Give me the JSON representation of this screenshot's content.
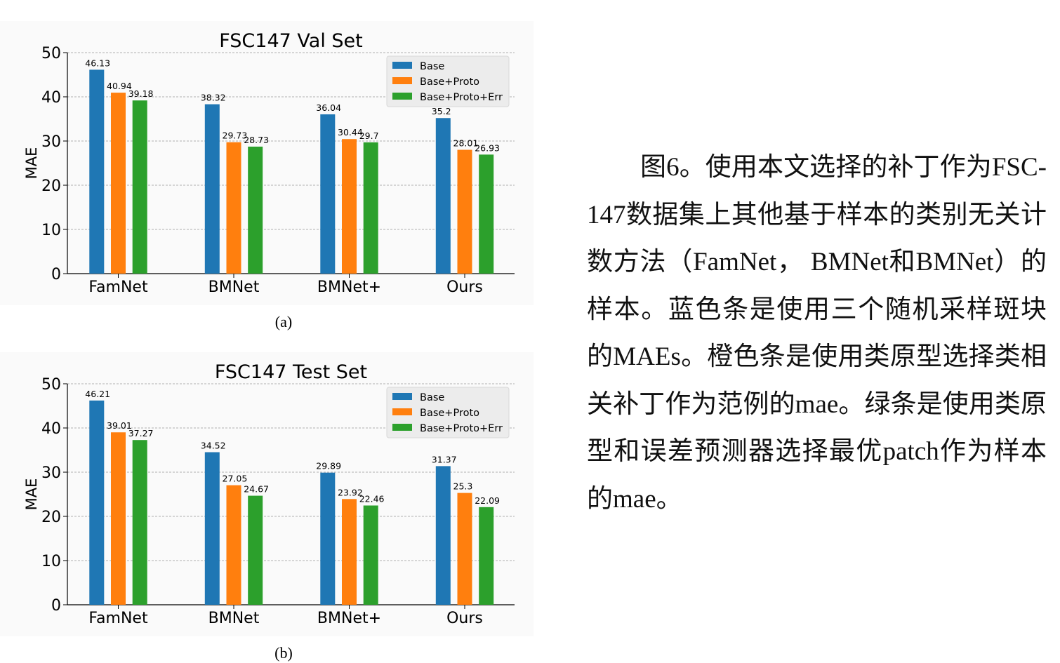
{
  "caption": "图6。使用本文选择的补丁作为FSC-147数据集上其他基于样本的类别无关计数方法（FamNet，  BMNet和BMNet）的样本。蓝色条是使用三个随机采样斑块的MAEs。橙色条是使用类原型选择类相关补丁作为范例的mae。绿条是使用类原型和误差预测器选择最优patch作为样本的mae。",
  "colors": {
    "Base": "#1f77b4",
    "Base+Proto": "#ff7f0e",
    "Base+Proto+Err": "#2ca02c"
  },
  "chart_data": [
    {
      "type": "bar",
      "title": "FSC147 Val Set",
      "sublabel": "(a)",
      "xlabel": "",
      "ylabel": "MAE",
      "ylim": [
        0,
        50
      ],
      "yticks": [
        "0",
        "10",
        "20",
        "30",
        "40",
        "50"
      ],
      "grid": true,
      "legend_position": "top-right",
      "categories": [
        "FamNet",
        "BMNet",
        "BMNet+",
        "Ours"
      ],
      "series": [
        {
          "name": "Base",
          "values": [
            46.13,
            38.32,
            36.04,
            35.2
          ],
          "labels": [
            "46.13",
            "38.32",
            "36.04",
            "35.2"
          ]
        },
        {
          "name": "Base+Proto",
          "values": [
            40.94,
            29.73,
            30.44,
            28.01
          ],
          "labels": [
            "40.94",
            "29.73",
            "30.44",
            "28.01"
          ]
        },
        {
          "name": "Base+Proto+Err",
          "values": [
            39.18,
            28.73,
            29.7,
            26.93
          ],
          "labels": [
            "39.18",
            "28.73",
            "29.7",
            "26.93"
          ]
        }
      ]
    },
    {
      "type": "bar",
      "title": "FSC147 Test Set",
      "sublabel": "(b)",
      "xlabel": "",
      "ylabel": "MAE",
      "ylim": [
        0,
        50
      ],
      "yticks": [
        "0",
        "10",
        "20",
        "30",
        "40",
        "50"
      ],
      "grid": true,
      "legend_position": "top-right",
      "categories": [
        "FamNet",
        "BMNet",
        "BMNet+",
        "Ours"
      ],
      "series": [
        {
          "name": "Base",
          "values": [
            46.21,
            34.52,
            29.89,
            31.37
          ],
          "labels": [
            "46.21",
            "34.52",
            "29.89",
            "31.37"
          ]
        },
        {
          "name": "Base+Proto",
          "values": [
            39.01,
            27.05,
            23.92,
            25.3
          ],
          "labels": [
            "39.01",
            "27.05",
            "23.92",
            "25.3"
          ]
        },
        {
          "name": "Base+Proto+Err",
          "values": [
            37.27,
            24.67,
            22.46,
            22.09
          ],
          "labels": [
            "37.27",
            "24.67",
            "22.46",
            "22.09"
          ]
        }
      ]
    }
  ]
}
